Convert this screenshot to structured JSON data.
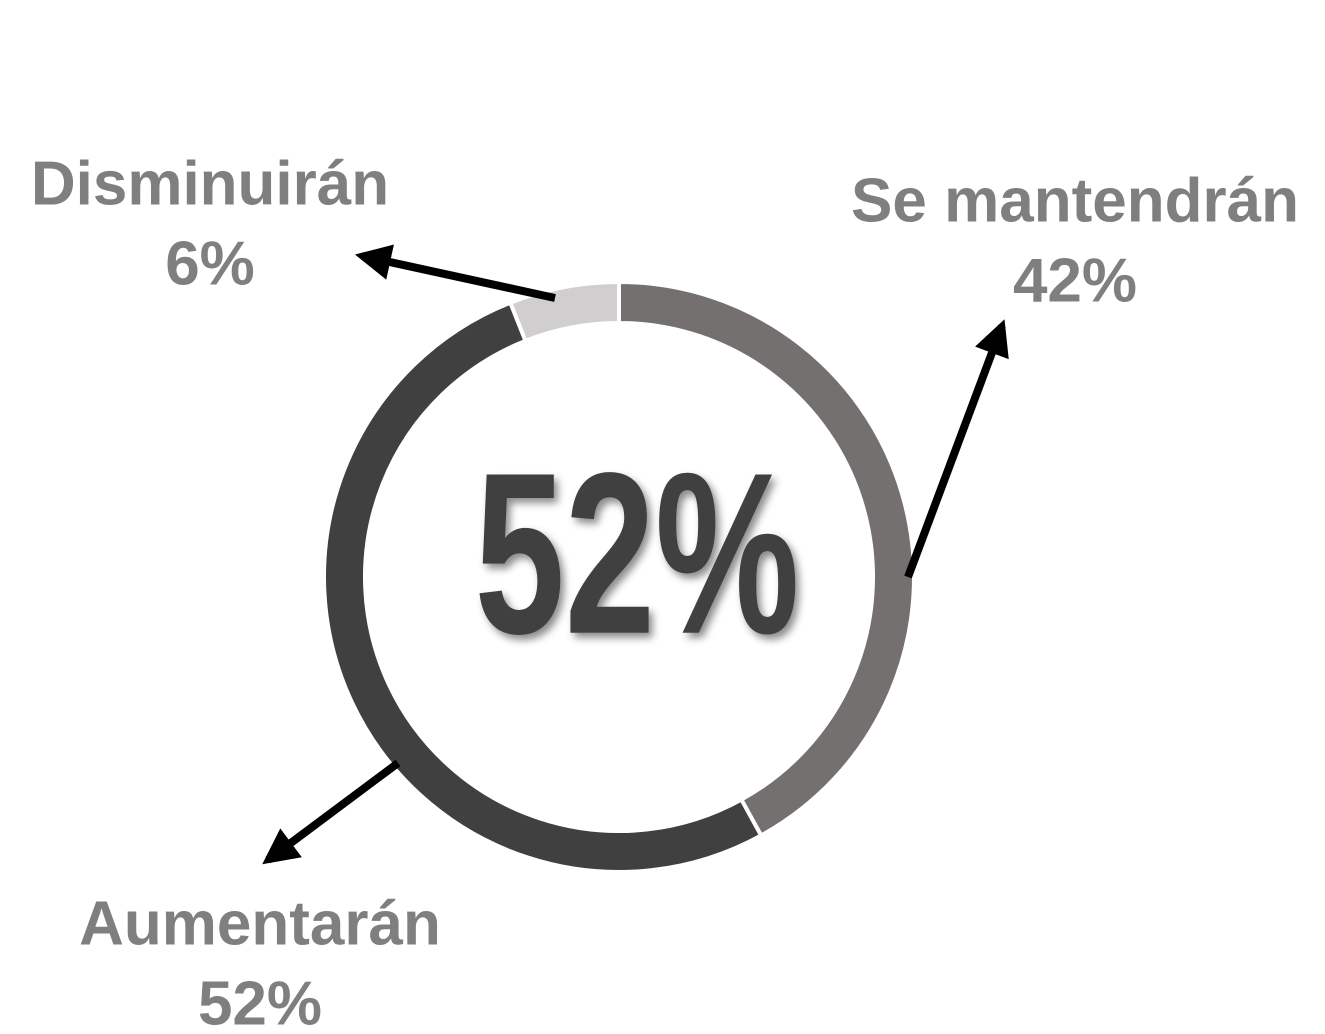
{
  "chart_data": {
    "type": "donut",
    "categories": [
      "Se mantendrán",
      "Aumentarán",
      "Disminuirán"
    ],
    "values": [
      42,
      52,
      6
    ],
    "value_labels": [
      "42%",
      "52%",
      "6%"
    ],
    "colors": [
      "#757070",
      "#404040",
      "#d0cece"
    ],
    "center_label": "52%"
  }
}
